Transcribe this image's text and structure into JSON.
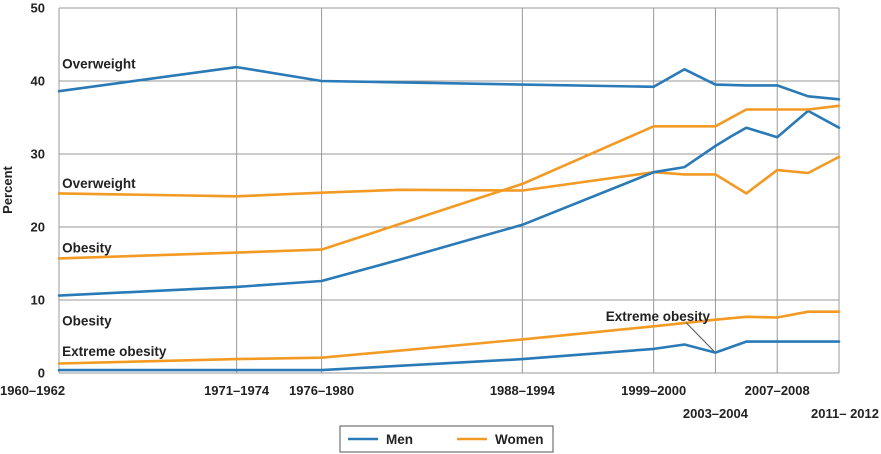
{
  "chart_data": {
    "type": "line",
    "ylabel": "Percent",
    "ylim": [
      0,
      50
    ],
    "yticks": [
      "0",
      "10",
      "20",
      "30",
      "40",
      "50"
    ],
    "x_tick_labels": [
      {
        "label": "1960–1962",
        "year": 1961,
        "row": 1
      },
      {
        "label": "1971–1974",
        "year": 1972.5,
        "row": 1
      },
      {
        "label": "1976–1980",
        "year": 1978,
        "row": 1
      },
      {
        "label": "1988–1994",
        "year": 1991,
        "row": 1
      },
      {
        "label": "1999–2000",
        "year": 1999.5,
        "row": 1
      },
      {
        "label": "2003–2004",
        "year": 2003.5,
        "row": 2
      },
      {
        "label": "2007–2008",
        "year": 2007.5,
        "row": 1
      },
      {
        "label": "2011– 2012",
        "year": 2011.5,
        "row": 2
      }
    ],
    "grid": true,
    "legend_position": "bottom-center",
    "series": [
      {
        "name": "Men",
        "label": "Overweight",
        "color": "#2a7ab8",
        "points": [
          [
            1961,
            38.6
          ],
          [
            1972.5,
            41.9
          ],
          [
            1978,
            40.0
          ],
          [
            1991,
            39.5
          ],
          [
            1999.5,
            39.2
          ],
          [
            2001.5,
            41.6
          ],
          [
            2003.5,
            39.5
          ],
          [
            2005.5,
            39.4
          ],
          [
            2007.5,
            39.4
          ],
          [
            2009.5,
            37.9
          ],
          [
            2011.5,
            37.5
          ]
        ]
      },
      {
        "name": "Women",
        "label": "Overweight",
        "color": "#f39a24",
        "points": [
          [
            1961,
            24.6
          ],
          [
            1972.5,
            24.2
          ],
          [
            1978,
            24.7
          ],
          [
            1983,
            25.1
          ],
          [
            1991,
            25.0
          ],
          [
            1999.5,
            27.5
          ],
          [
            2001.5,
            27.2
          ],
          [
            2003.5,
            27.2
          ],
          [
            2005.5,
            24.6
          ],
          [
            2007.5,
            27.8
          ],
          [
            2009.5,
            27.4
          ],
          [
            2011.5,
            29.6
          ]
        ]
      },
      {
        "name": "Men",
        "label": "Obesity",
        "color": "#2a7ab8",
        "points": [
          [
            1961,
            10.6
          ],
          [
            1972.5,
            11.8
          ],
          [
            1978,
            12.6
          ],
          [
            1983,
            15.5
          ],
          [
            1988,
            18.5
          ],
          [
            1991,
            20.3
          ],
          [
            1999.5,
            27.5
          ],
          [
            2001.5,
            28.2
          ],
          [
            2003.5,
            31.1
          ],
          [
            2004.5,
            32.4
          ],
          [
            2005.5,
            33.6
          ],
          [
            2007.5,
            32.3
          ],
          [
            2009.5,
            35.9
          ],
          [
            2011.5,
            33.6
          ]
        ]
      },
      {
        "name": "Women",
        "label": "Obesity",
        "color": "#f39a24",
        "points": [
          [
            1961,
            15.7
          ],
          [
            1972.5,
            16.5
          ],
          [
            1978,
            16.9
          ],
          [
            1991,
            25.9
          ],
          [
            1999.5,
            33.8
          ],
          [
            2003.5,
            33.8
          ],
          [
            2005.5,
            36.1
          ],
          [
            2007.5,
            36.1
          ],
          [
            2009.5,
            36.1
          ],
          [
            2011.5,
            36.6
          ]
        ]
      },
      {
        "name": "Men",
        "label": "Extreme obesity",
        "color": "#2a7ab8",
        "points": [
          [
            1961,
            0.4
          ],
          [
            1972.5,
            0.4
          ],
          [
            1978,
            0.4
          ],
          [
            1991,
            1.9
          ],
          [
            1999.5,
            3.3
          ],
          [
            2001.5,
            3.9
          ],
          [
            2003.5,
            2.8
          ],
          [
            2005.5,
            4.3
          ],
          [
            2007.5,
            4.3
          ],
          [
            2009.5,
            4.3
          ],
          [
            2011.5,
            4.3
          ]
        ]
      },
      {
        "name": "Women",
        "label": "Extreme obesity",
        "color": "#f39a24",
        "points": [
          [
            1961,
            1.3
          ],
          [
            1972.5,
            1.9
          ],
          [
            1978,
            2.1
          ],
          [
            1991,
            4.6
          ],
          [
            1999.5,
            6.4
          ],
          [
            2003.5,
            7.3
          ],
          [
            2005.5,
            7.7
          ],
          [
            2007.5,
            7.6
          ],
          [
            2009.5,
            8.4
          ],
          [
            2011.5,
            8.4
          ]
        ]
      }
    ],
    "annotations": [
      {
        "text": "Overweight",
        "year": 1961.2,
        "value": 42.4
      },
      {
        "text": "Overweight",
        "year": 1961.2,
        "value": 26.0
      },
      {
        "text": "Obesity",
        "year": 1961.2,
        "value": 17.2
      },
      {
        "text": "Obesity",
        "year": 1961.2,
        "value": 7.2
      },
      {
        "text": "Extreme obesity",
        "year": 1961.2,
        "value": 3.0
      },
      {
        "text": "Extreme obesity",
        "year": 1996.4,
        "value": 7.8
      }
    ],
    "callout": {
      "from_year": 2001.6,
      "from_value": 6.9,
      "to_year": 2003.4,
      "to_value": 3.0
    },
    "legend": [
      {
        "label": "Men",
        "color": "#2a7ab8"
      },
      {
        "label": "Women",
        "color": "#f39a24"
      }
    ]
  }
}
